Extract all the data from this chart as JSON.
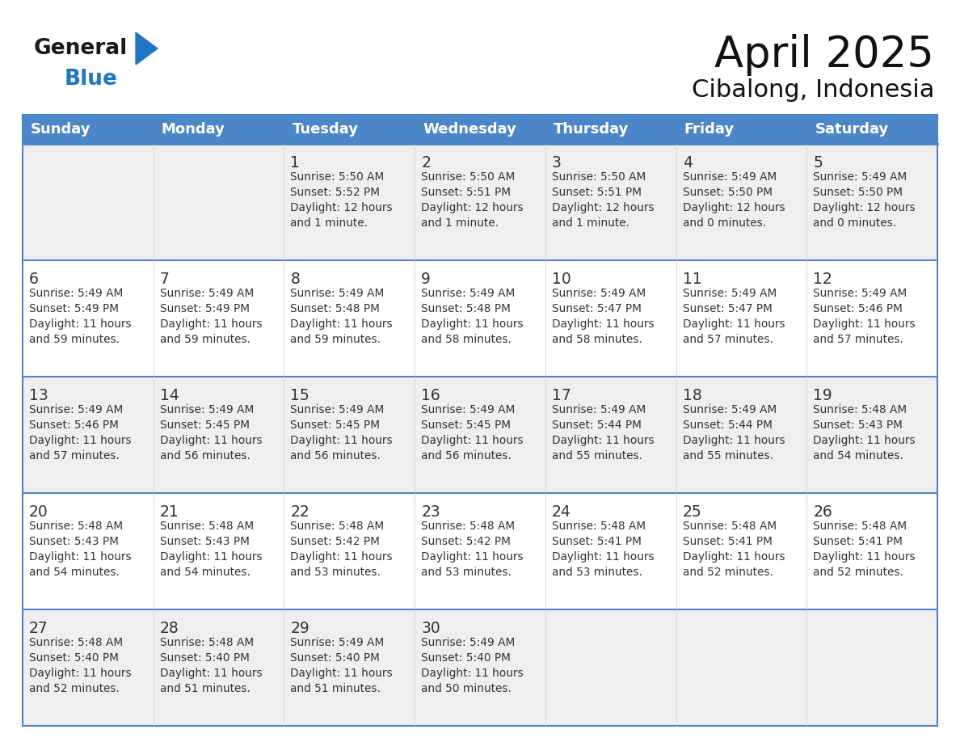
{
  "title": "April 2025",
  "subtitle": "Cibalong, Indonesia",
  "days_of_week": [
    "Sunday",
    "Monday",
    "Tuesday",
    "Wednesday",
    "Thursday",
    "Friday",
    "Saturday"
  ],
  "header_bg": "#4A86C8",
  "header_text": "#FFFFFF",
  "row_bg_odd": "#EFEFEF",
  "row_bg_even": "#FFFFFF",
  "border_color": "#4A86C8",
  "cell_text_color": "#333333",
  "day_num_color": "#333333",
  "calendar_data": [
    [
      null,
      null,
      {
        "day": 1,
        "sunrise": "5:50 AM",
        "sunset": "5:52 PM",
        "daylight_line1": "Daylight: 12 hours",
        "daylight_line2": "and 1 minute."
      },
      {
        "day": 2,
        "sunrise": "5:50 AM",
        "sunset": "5:51 PM",
        "daylight_line1": "Daylight: 12 hours",
        "daylight_line2": "and 1 minute."
      },
      {
        "day": 3,
        "sunrise": "5:50 AM",
        "sunset": "5:51 PM",
        "daylight_line1": "Daylight: 12 hours",
        "daylight_line2": "and 1 minute."
      },
      {
        "day": 4,
        "sunrise": "5:49 AM",
        "sunset": "5:50 PM",
        "daylight_line1": "Daylight: 12 hours",
        "daylight_line2": "and 0 minutes."
      },
      {
        "day": 5,
        "sunrise": "5:49 AM",
        "sunset": "5:50 PM",
        "daylight_line1": "Daylight: 12 hours",
        "daylight_line2": "and 0 minutes."
      }
    ],
    [
      {
        "day": 6,
        "sunrise": "5:49 AM",
        "sunset": "5:49 PM",
        "daylight_line1": "Daylight: 11 hours",
        "daylight_line2": "and 59 minutes."
      },
      {
        "day": 7,
        "sunrise": "5:49 AM",
        "sunset": "5:49 PM",
        "daylight_line1": "Daylight: 11 hours",
        "daylight_line2": "and 59 minutes."
      },
      {
        "day": 8,
        "sunrise": "5:49 AM",
        "sunset": "5:48 PM",
        "daylight_line1": "Daylight: 11 hours",
        "daylight_line2": "and 59 minutes."
      },
      {
        "day": 9,
        "sunrise": "5:49 AM",
        "sunset": "5:48 PM",
        "daylight_line1": "Daylight: 11 hours",
        "daylight_line2": "and 58 minutes."
      },
      {
        "day": 10,
        "sunrise": "5:49 AM",
        "sunset": "5:47 PM",
        "daylight_line1": "Daylight: 11 hours",
        "daylight_line2": "and 58 minutes."
      },
      {
        "day": 11,
        "sunrise": "5:49 AM",
        "sunset": "5:47 PM",
        "daylight_line1": "Daylight: 11 hours",
        "daylight_line2": "and 57 minutes."
      },
      {
        "day": 12,
        "sunrise": "5:49 AM",
        "sunset": "5:46 PM",
        "daylight_line1": "Daylight: 11 hours",
        "daylight_line2": "and 57 minutes."
      }
    ],
    [
      {
        "day": 13,
        "sunrise": "5:49 AM",
        "sunset": "5:46 PM",
        "daylight_line1": "Daylight: 11 hours",
        "daylight_line2": "and 57 minutes."
      },
      {
        "day": 14,
        "sunrise": "5:49 AM",
        "sunset": "5:45 PM",
        "daylight_line1": "Daylight: 11 hours",
        "daylight_line2": "and 56 minutes."
      },
      {
        "day": 15,
        "sunrise": "5:49 AM",
        "sunset": "5:45 PM",
        "daylight_line1": "Daylight: 11 hours",
        "daylight_line2": "and 56 minutes."
      },
      {
        "day": 16,
        "sunrise": "5:49 AM",
        "sunset": "5:45 PM",
        "daylight_line1": "Daylight: 11 hours",
        "daylight_line2": "and 56 minutes."
      },
      {
        "day": 17,
        "sunrise": "5:49 AM",
        "sunset": "5:44 PM",
        "daylight_line1": "Daylight: 11 hours",
        "daylight_line2": "and 55 minutes."
      },
      {
        "day": 18,
        "sunrise": "5:49 AM",
        "sunset": "5:44 PM",
        "daylight_line1": "Daylight: 11 hours",
        "daylight_line2": "and 55 minutes."
      },
      {
        "day": 19,
        "sunrise": "5:48 AM",
        "sunset": "5:43 PM",
        "daylight_line1": "Daylight: 11 hours",
        "daylight_line2": "and 54 minutes."
      }
    ],
    [
      {
        "day": 20,
        "sunrise": "5:48 AM",
        "sunset": "5:43 PM",
        "daylight_line1": "Daylight: 11 hours",
        "daylight_line2": "and 54 minutes."
      },
      {
        "day": 21,
        "sunrise": "5:48 AM",
        "sunset": "5:43 PM",
        "daylight_line1": "Daylight: 11 hours",
        "daylight_line2": "and 54 minutes."
      },
      {
        "day": 22,
        "sunrise": "5:48 AM",
        "sunset": "5:42 PM",
        "daylight_line1": "Daylight: 11 hours",
        "daylight_line2": "and 53 minutes."
      },
      {
        "day": 23,
        "sunrise": "5:48 AM",
        "sunset": "5:42 PM",
        "daylight_line1": "Daylight: 11 hours",
        "daylight_line2": "and 53 minutes."
      },
      {
        "day": 24,
        "sunrise": "5:48 AM",
        "sunset": "5:41 PM",
        "daylight_line1": "Daylight: 11 hours",
        "daylight_line2": "and 53 minutes."
      },
      {
        "day": 25,
        "sunrise": "5:48 AM",
        "sunset": "5:41 PM",
        "daylight_line1": "Daylight: 11 hours",
        "daylight_line2": "and 52 minutes."
      },
      {
        "day": 26,
        "sunrise": "5:48 AM",
        "sunset": "5:41 PM",
        "daylight_line1": "Daylight: 11 hours",
        "daylight_line2": "and 52 minutes."
      }
    ],
    [
      {
        "day": 27,
        "sunrise": "5:48 AM",
        "sunset": "5:40 PM",
        "daylight_line1": "Daylight: 11 hours",
        "daylight_line2": "and 52 minutes."
      },
      {
        "day": 28,
        "sunrise": "5:48 AM",
        "sunset": "5:40 PM",
        "daylight_line1": "Daylight: 11 hours",
        "daylight_line2": "and 51 minutes."
      },
      {
        "day": 29,
        "sunrise": "5:49 AM",
        "sunset": "5:40 PM",
        "daylight_line1": "Daylight: 11 hours",
        "daylight_line2": "and 51 minutes."
      },
      {
        "day": 30,
        "sunrise": "5:49 AM",
        "sunset": "5:40 PM",
        "daylight_line1": "Daylight: 11 hours",
        "daylight_line2": "and 50 minutes."
      },
      null,
      null,
      null
    ]
  ],
  "logo_blue": "#2176C7",
  "logo_black": "#1A1A1A",
  "fig_width": 11.88,
  "fig_height": 9.18,
  "dpi": 100
}
